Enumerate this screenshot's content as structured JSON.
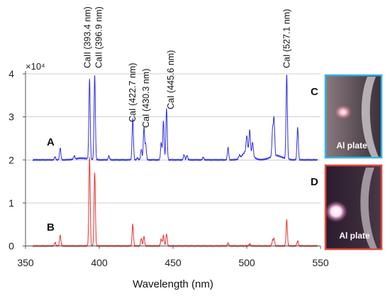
{
  "chart_data": {
    "type": "line",
    "xlabel": "Wavelength (nm)",
    "xlim": [
      350,
      550
    ],
    "x_ticks": [
      "350",
      "400",
      "450",
      "500",
      "550"
    ],
    "ylim": [
      0,
      4
    ],
    "y_ticks": [
      "0",
      "1",
      "2",
      "3",
      "4"
    ],
    "y_multiplier": "×10⁴",
    "grid": "horizontal",
    "panels": [
      {
        "label": "A",
        "color": "#3030e0",
        "baseline": 2.0,
        "peaks": [
          [
            370,
            0.07
          ],
          [
            373.5,
            0.28
          ],
          [
            383,
            0.08
          ],
          [
            393.4,
            1.85
          ],
          [
            396.9,
            1.95
          ],
          [
            406.5,
            0.09
          ],
          [
            422.7,
            0.95
          ],
          [
            426,
            0.05
          ],
          [
            428.5,
            0.25
          ],
          [
            430.3,
            0.75
          ],
          [
            431.5,
            0.35
          ],
          [
            442,
            0.4
          ],
          [
            443.5,
            0.9
          ],
          [
            445.6,
            1.2
          ],
          [
            457.5,
            0.12
          ],
          [
            459.5,
            0.1
          ],
          [
            470.5,
            0.06
          ],
          [
            487.3,
            0.28
          ],
          [
            495,
            0.07
          ],
          [
            500,
            0.35
          ],
          [
            502,
            0.5
          ],
          [
            504,
            0.3
          ],
          [
            517.5,
            0.6
          ],
          [
            518.5,
            0.85
          ],
          [
            527.1,
            1.95
          ],
          [
            534.5,
            0.75
          ]
        ],
        "bumps": [
          [
            388,
            0.04,
            4
          ],
          [
            500.5,
            0.22,
            3
          ],
          [
            520,
            0.1,
            4
          ]
        ]
      },
      {
        "label": "B",
        "color": "#e83030",
        "baseline": 0.0,
        "peaks": [
          [
            370,
            0.08
          ],
          [
            373.5,
            0.25
          ],
          [
            393.4,
            2.05
          ],
          [
            396.9,
            1.7
          ],
          [
            422.7,
            0.5
          ],
          [
            428.5,
            0.18
          ],
          [
            430.3,
            0.22
          ],
          [
            442,
            0.16
          ],
          [
            443.5,
            0.25
          ],
          [
            445.6,
            0.28
          ],
          [
            487.3,
            0.06
          ],
          [
            502,
            0.05
          ],
          [
            517.5,
            0.12
          ],
          [
            518.5,
            0.16
          ],
          [
            527.1,
            0.6
          ],
          [
            534.5,
            0.12
          ]
        ],
        "bumps": []
      }
    ],
    "annotations": [
      {
        "x": 393.4,
        "text": "CaII (393.4 nm)"
      },
      {
        "x": 396.9,
        "text": "CaII (396.9 nm)"
      },
      {
        "x": 422.7,
        "text": "CaI (422.7 nm)"
      },
      {
        "x": 430.3,
        "text": "CaI (430.3 nm)"
      },
      {
        "x": 445.6,
        "text": "CaI (445.6 nm)"
      },
      {
        "x": 527.1,
        "text": "CaI (527.1 nm)"
      }
    ]
  },
  "photos": [
    {
      "label": "C",
      "caption": "Al plate",
      "border_color": "#2fb3e6"
    },
    {
      "label": "D",
      "caption": "Al plate",
      "border_color": "#e0483a"
    }
  ]
}
